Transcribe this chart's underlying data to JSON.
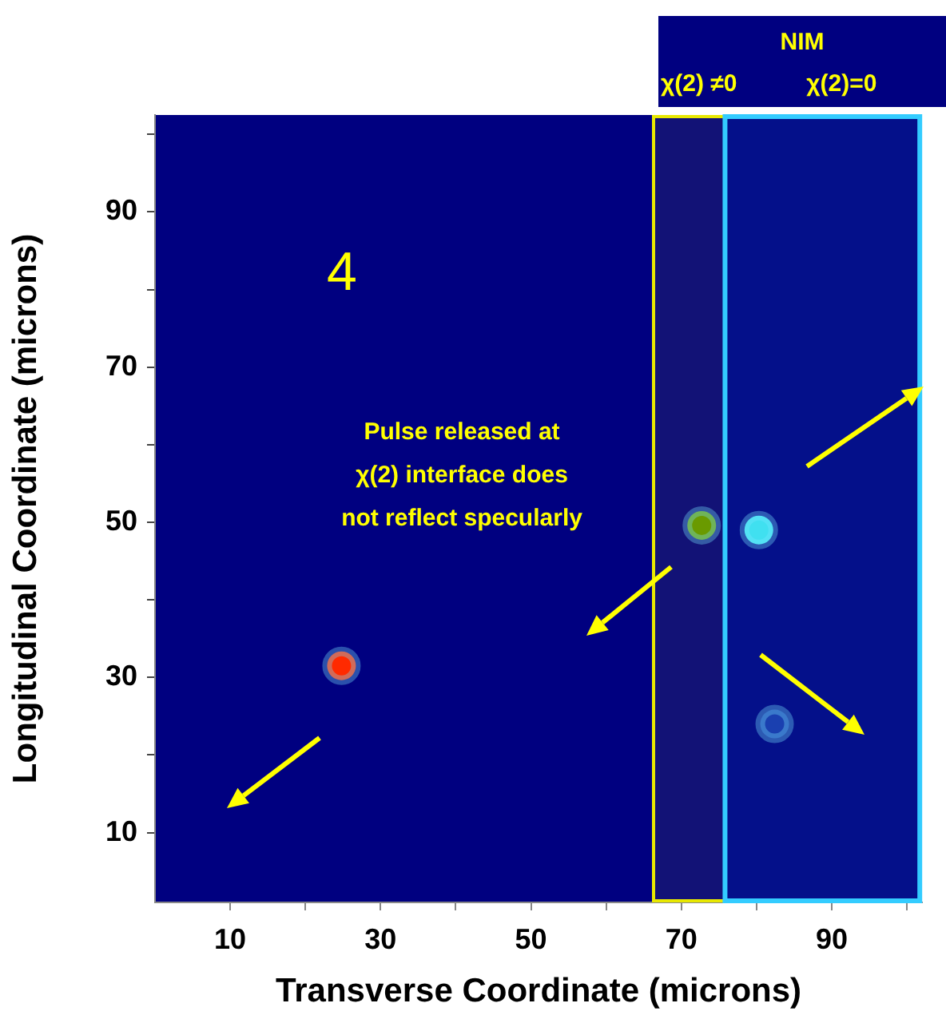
{
  "chart_data": {
    "type": "scatter",
    "xlabel": "Transverse Coordinate (microns)",
    "ylabel": "Longitudinal Coordinate (microns)",
    "x": [
      24.8,
      72.7,
      80.3,
      82.4
    ],
    "series": [
      {
        "colors": [
          "#ff2a00",
          "#6a9a00",
          "#40e0f0",
          "#1a40b0"
        ],
        "values": [
          31.5,
          49.6,
          49,
          24
        ]
      }
    ],
    "xlim": [
      0,
      102
    ],
    "xticks": [
      10,
      {
        "value": 20,
        "label": null
      },
      30,
      {
        "value": 40,
        "label": null
      },
      50,
      {
        "value": 60,
        "label": null
      },
      70,
      {
        "value": 80,
        "label": null
      },
      90,
      {
        "value": 100,
        "label": null
      }
    ],
    "ylim": [
      1,
      102.5
    ],
    "yticks": [
      10,
      {
        "value": 20,
        "label": null
      },
      30,
      {
        "value": 40,
        "label": null
      },
      50,
      {
        "value": 60,
        "label": null
      },
      70,
      {
        "value": 80,
        "label": null
      },
      90,
      {
        "value": 100,
        "label": null
      }
    ],
    "bands": [
      {
        "axis": "x",
        "from": 66.3,
        "to": 75.8,
        "label": "χ(2) ≠0",
        "color": "#e8e800"
      },
      {
        "axis": "x",
        "from": 75.8,
        "to": 101.7,
        "label": "χ(2)=0",
        "color": "#33ccff"
      }
    ],
    "annotations": [
      "4",
      "Pulse released at\nχ(2) interface does\nnot reflect specularly",
      "NIM"
    ],
    "marker": "circle",
    "grid": false,
    "legend": false
  }
}
